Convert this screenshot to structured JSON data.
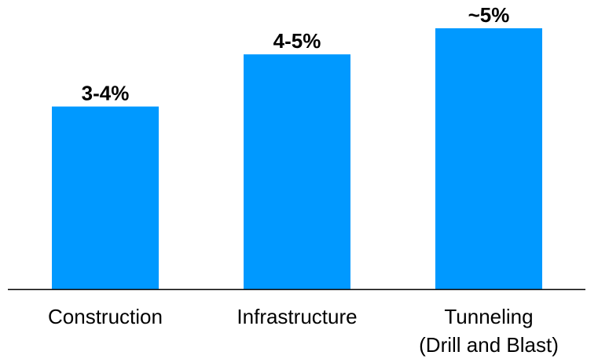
{
  "chart_data": {
    "type": "bar",
    "categories": [
      [
        "Construction"
      ],
      [
        "Infrastructure"
      ],
      [
        "Tunneling",
        "(Drill and Blast)"
      ]
    ],
    "values": [
      3.5,
      4.5,
      5.0
    ],
    "data_labels": [
      "3-4%",
      "4-5%",
      "~5%"
    ],
    "ylim": [
      0,
      5.0
    ],
    "grid": false,
    "legend": "none",
    "bar_color": "#0099ff",
    "axis_color": "#000000"
  }
}
